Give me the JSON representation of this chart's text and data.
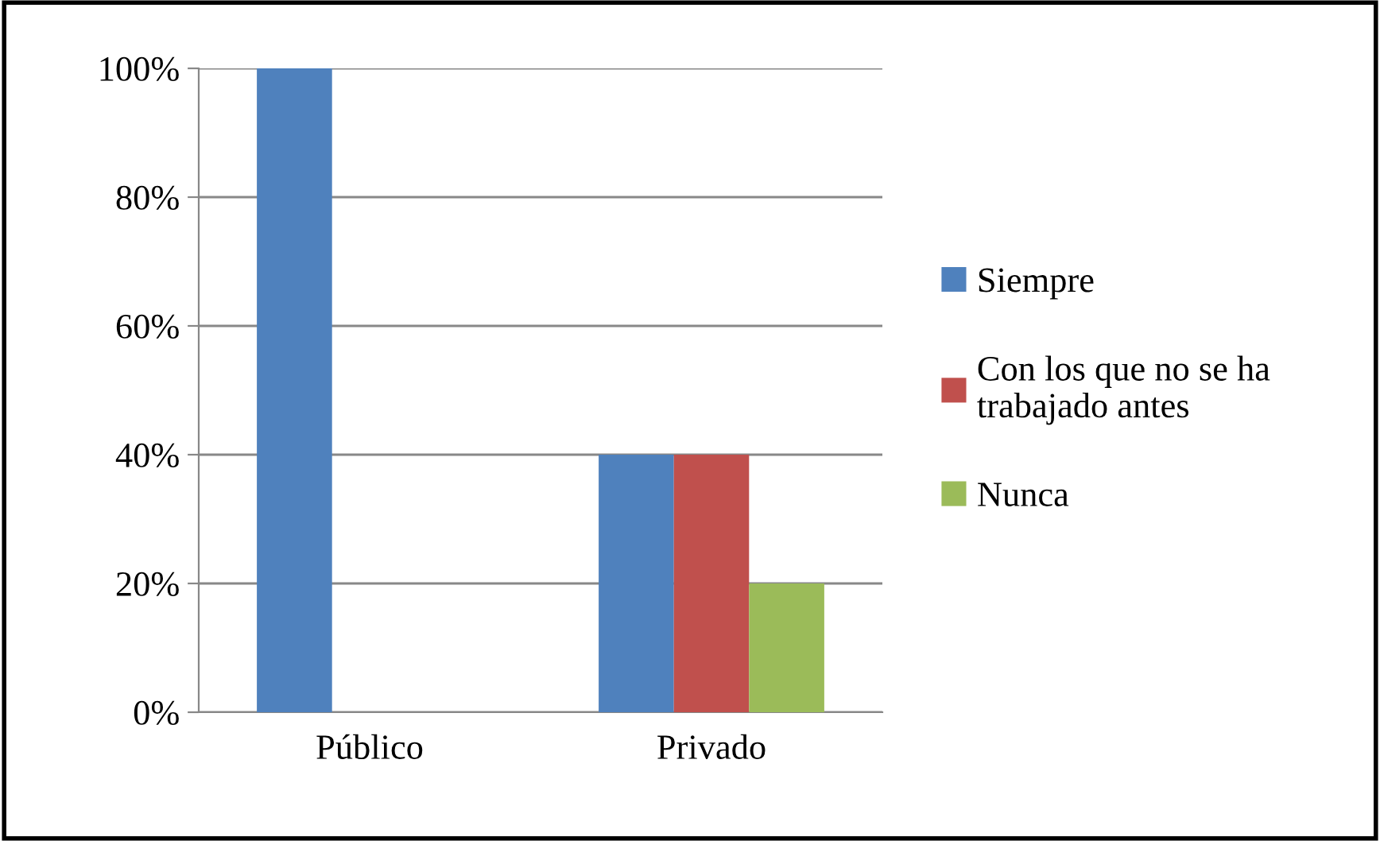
{
  "chart_data": {
    "type": "bar",
    "categories": [
      "Público",
      "Privado"
    ],
    "series": [
      {
        "name": "Siempre",
        "color": "#4f81bd",
        "values": [
          100,
          40
        ]
      },
      {
        "name": "Con los que no se ha trabajado antes",
        "color": "#c0504d",
        "values": [
          0,
          40
        ]
      },
      {
        "name": "Nunca",
        "color": "#9bbb59",
        "values": [
          0,
          20
        ]
      }
    ],
    "ylim": [
      0,
      100
    ],
    "yticks": [
      {
        "value": 0,
        "label": "0%"
      },
      {
        "value": 20,
        "label": "20%"
      },
      {
        "value": 40,
        "label": "40%"
      },
      {
        "value": 60,
        "label": "60%"
      },
      {
        "value": 80,
        "label": "80%"
      },
      {
        "value": 100,
        "label": "100%"
      }
    ],
    "grid": "y",
    "legend": "right"
  }
}
